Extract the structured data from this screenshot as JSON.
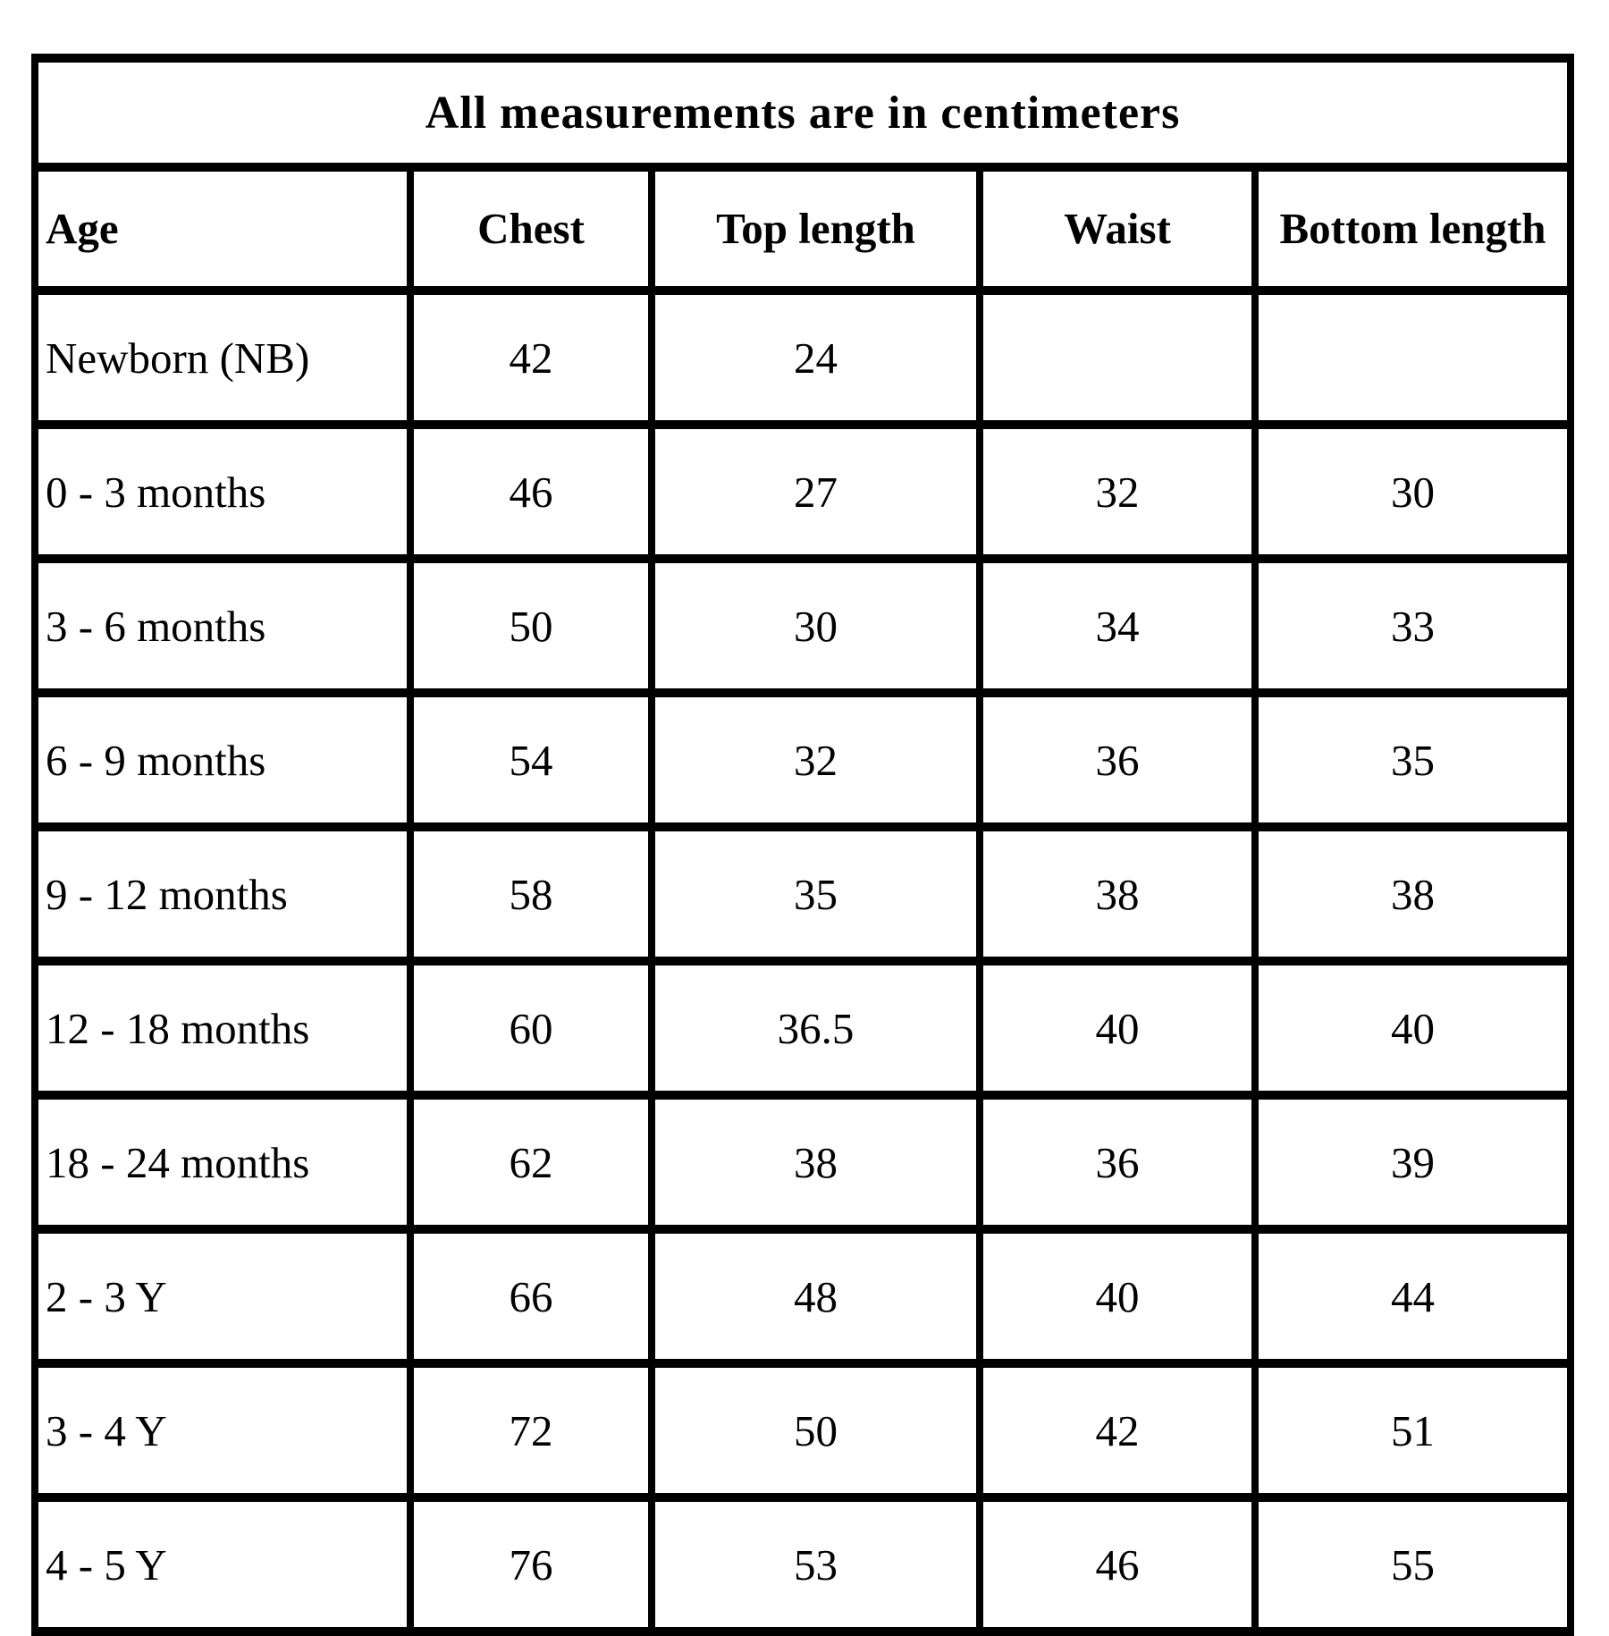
{
  "page": {
    "background_color": "#ffffff",
    "border_color": "#000000",
    "text_color": "#000000"
  },
  "table": {
    "title": "All measurements are in centimeters",
    "columns": [
      "Age",
      "Chest",
      "Top length",
      "Waist",
      "Bottom length"
    ],
    "rows": [
      [
        "Newborn (NB)",
        "42",
        "24",
        "",
        ""
      ],
      [
        "0 - 3 months",
        "46",
        "27",
        "32",
        "30"
      ],
      [
        "3 - 6 months",
        "50",
        "30",
        "34",
        "33"
      ],
      [
        "6 - 9 months",
        "54",
        "32",
        "36",
        "35"
      ],
      [
        "9 - 12 months",
        "58",
        "35",
        "38",
        "38"
      ],
      [
        "12 - 18 months",
        "60",
        "36.5",
        "40",
        "40"
      ],
      [
        "18 - 24 months",
        "62",
        "38",
        "36",
        "39"
      ],
      [
        "2 - 3 Y",
        "66",
        "48",
        "40",
        "44"
      ],
      [
        "3 - 4 Y",
        "72",
        "50",
        "42",
        "51"
      ],
      [
        "4 - 5 Y",
        "76",
        "53",
        "46",
        "55"
      ]
    ]
  }
}
